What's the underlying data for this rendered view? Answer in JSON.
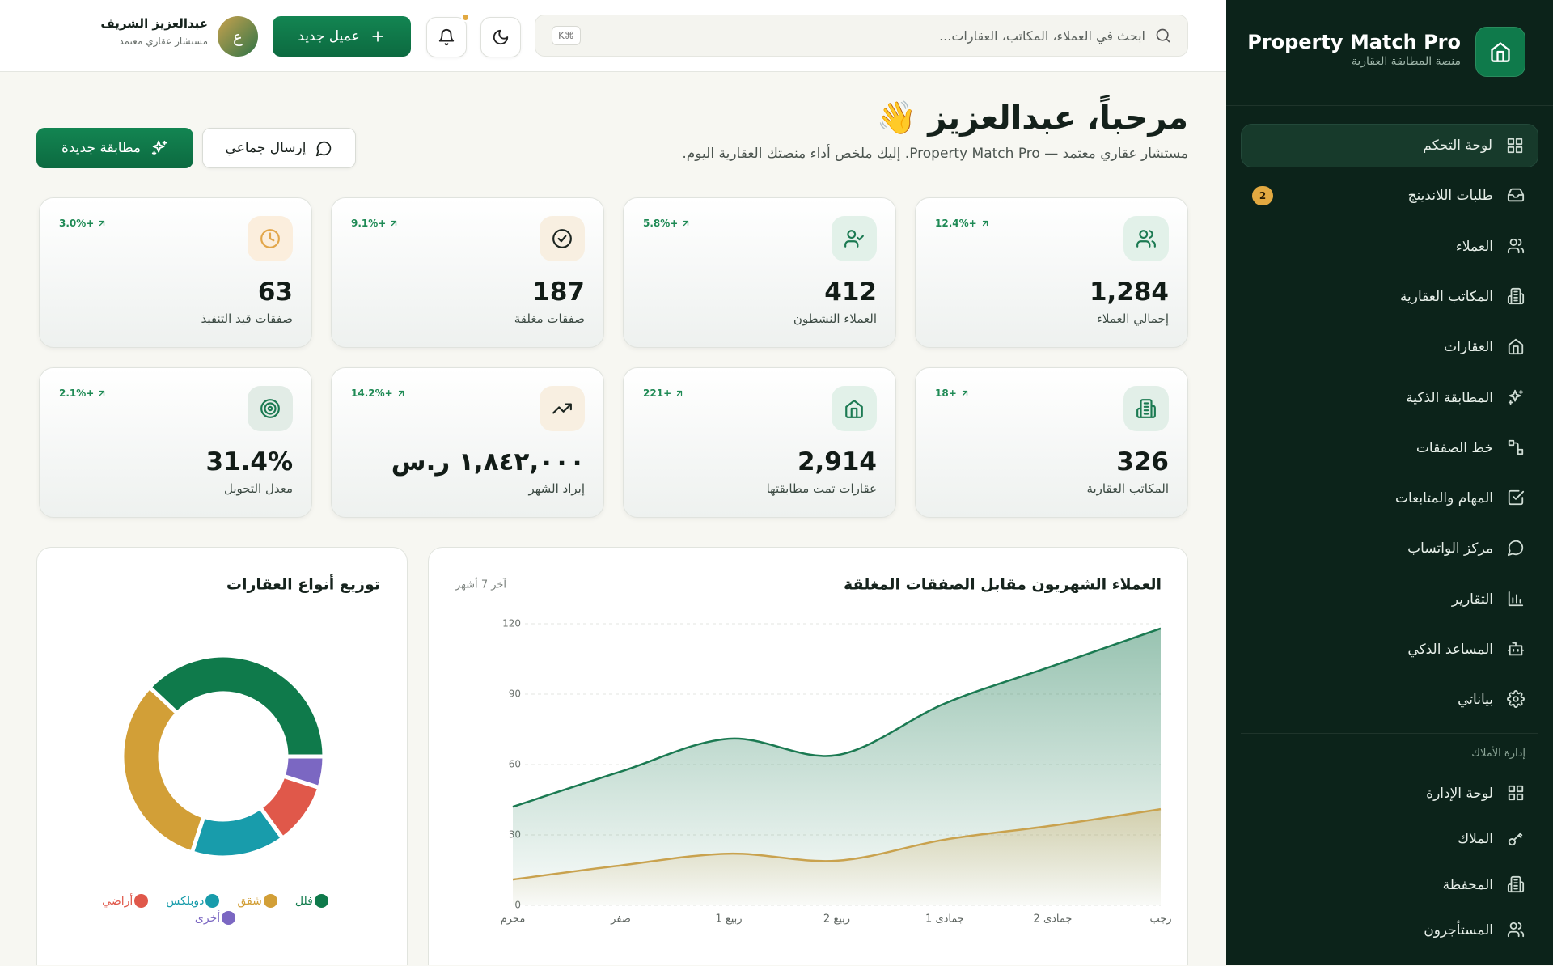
{
  "sidebar": {
    "brand": "Property Match Pro",
    "tagline": "منصة المطابقة العقارية",
    "nav": [
      {
        "label": "لوحة التحكم"
      },
      {
        "label": "طلبات اللاندينج",
        "badge": 2
      },
      {
        "label": "العملاء"
      },
      {
        "label": "المكاتب العقارية"
      },
      {
        "label": "العقارات"
      },
      {
        "label": "المطابقة الذكية"
      },
      {
        "label": "خط الصفقات"
      },
      {
        "label": "المهام والمتابعات"
      },
      {
        "label": "مركز الواتساب"
      },
      {
        "label": "التقارير"
      },
      {
        "label": "المساعد الذكي"
      },
      {
        "label": "بياناتي"
      }
    ],
    "section_title": "إدارة الأملاك",
    "section_nav": [
      {
        "label": "لوحة الإدارة"
      },
      {
        "label": "الملاك"
      },
      {
        "label": "المحفظة"
      },
      {
        "label": "المستأجرون"
      }
    ]
  },
  "topbar": {
    "search_placeholder": "ابحث في العملاء، المكاتب، العقارات...",
    "shortcut": "⌘K",
    "new_client": "عميل جديد",
    "user": {
      "initial": "ع",
      "name": "عبدالعزيز الشريف",
      "role": "مستشار عقاري معتمد"
    }
  },
  "header": {
    "title": "مرحباً، عبدالعزيز 👋",
    "subtitle": "مستشار عقاري معتمد — Property Match Pro. إليك ملخص أداء منصتك العقارية اليوم.",
    "broadcast": "إرسال جماعي",
    "new_match": "مطابقة جديدة"
  },
  "stats": [
    {
      "label": "إجمالي العملاء",
      "value": "1,284",
      "change": "+12.4%"
    },
    {
      "label": "العملاء النشطون",
      "value": "412",
      "change": "+5.8%"
    },
    {
      "label": "صفقات مغلقة",
      "value": "187",
      "change": "+9.1%"
    },
    {
      "label": "صفقات قيد التنفيذ",
      "value": "63",
      "change": "+3.0%"
    },
    {
      "label": "المكاتب العقارية",
      "value": "326",
      "change": "+18"
    },
    {
      "label": "عقارات تمت مطابقتها",
      "value": "2,914",
      "change": "+221"
    },
    {
      "label": "إيراد الشهر",
      "value": "١,٨٤٢,٠٠٠ ر.س",
      "change": "+14.2%"
    },
    {
      "label": "معدل التحويل",
      "value": "31.4%",
      "change": "+2.1%"
    }
  ],
  "chart_data": [
    {
      "type": "area",
      "title": "العملاء الشهريون مقابل الصفقات المغلقة",
      "subtitle": "آخر 7 أشهر",
      "categories": [
        "محرم",
        "صفر",
        "ربيع 1",
        "ربيع 2",
        "جمادى 1",
        "جمادى 2",
        "رجب"
      ],
      "series": [
        {
          "color": "#1b7a52",
          "values": [
            42,
            57,
            71,
            64,
            86,
            102,
            118
          ]
        },
        {
          "color": "#c9a24e",
          "values": [
            11,
            17,
            22,
            19,
            28,
            34,
            41
          ]
        }
      ],
      "ylim": [
        0,
        120
      ],
      "yticks": [
        0,
        30,
        60,
        90,
        120
      ],
      "grid": true
    },
    {
      "type": "donut",
      "title": "توزيع أنواع العقارات",
      "categories": [
        "فلل",
        "شقق",
        "دوبلكس",
        "أراضي",
        "أخرى"
      ],
      "values": [
        38,
        32,
        15,
        10,
        5
      ],
      "colors": [
        "#0f7a4b",
        "#d29f37",
        "#189cab",
        "#e0584a",
        "#7b67c2"
      ],
      "legend": "bottom"
    }
  ]
}
